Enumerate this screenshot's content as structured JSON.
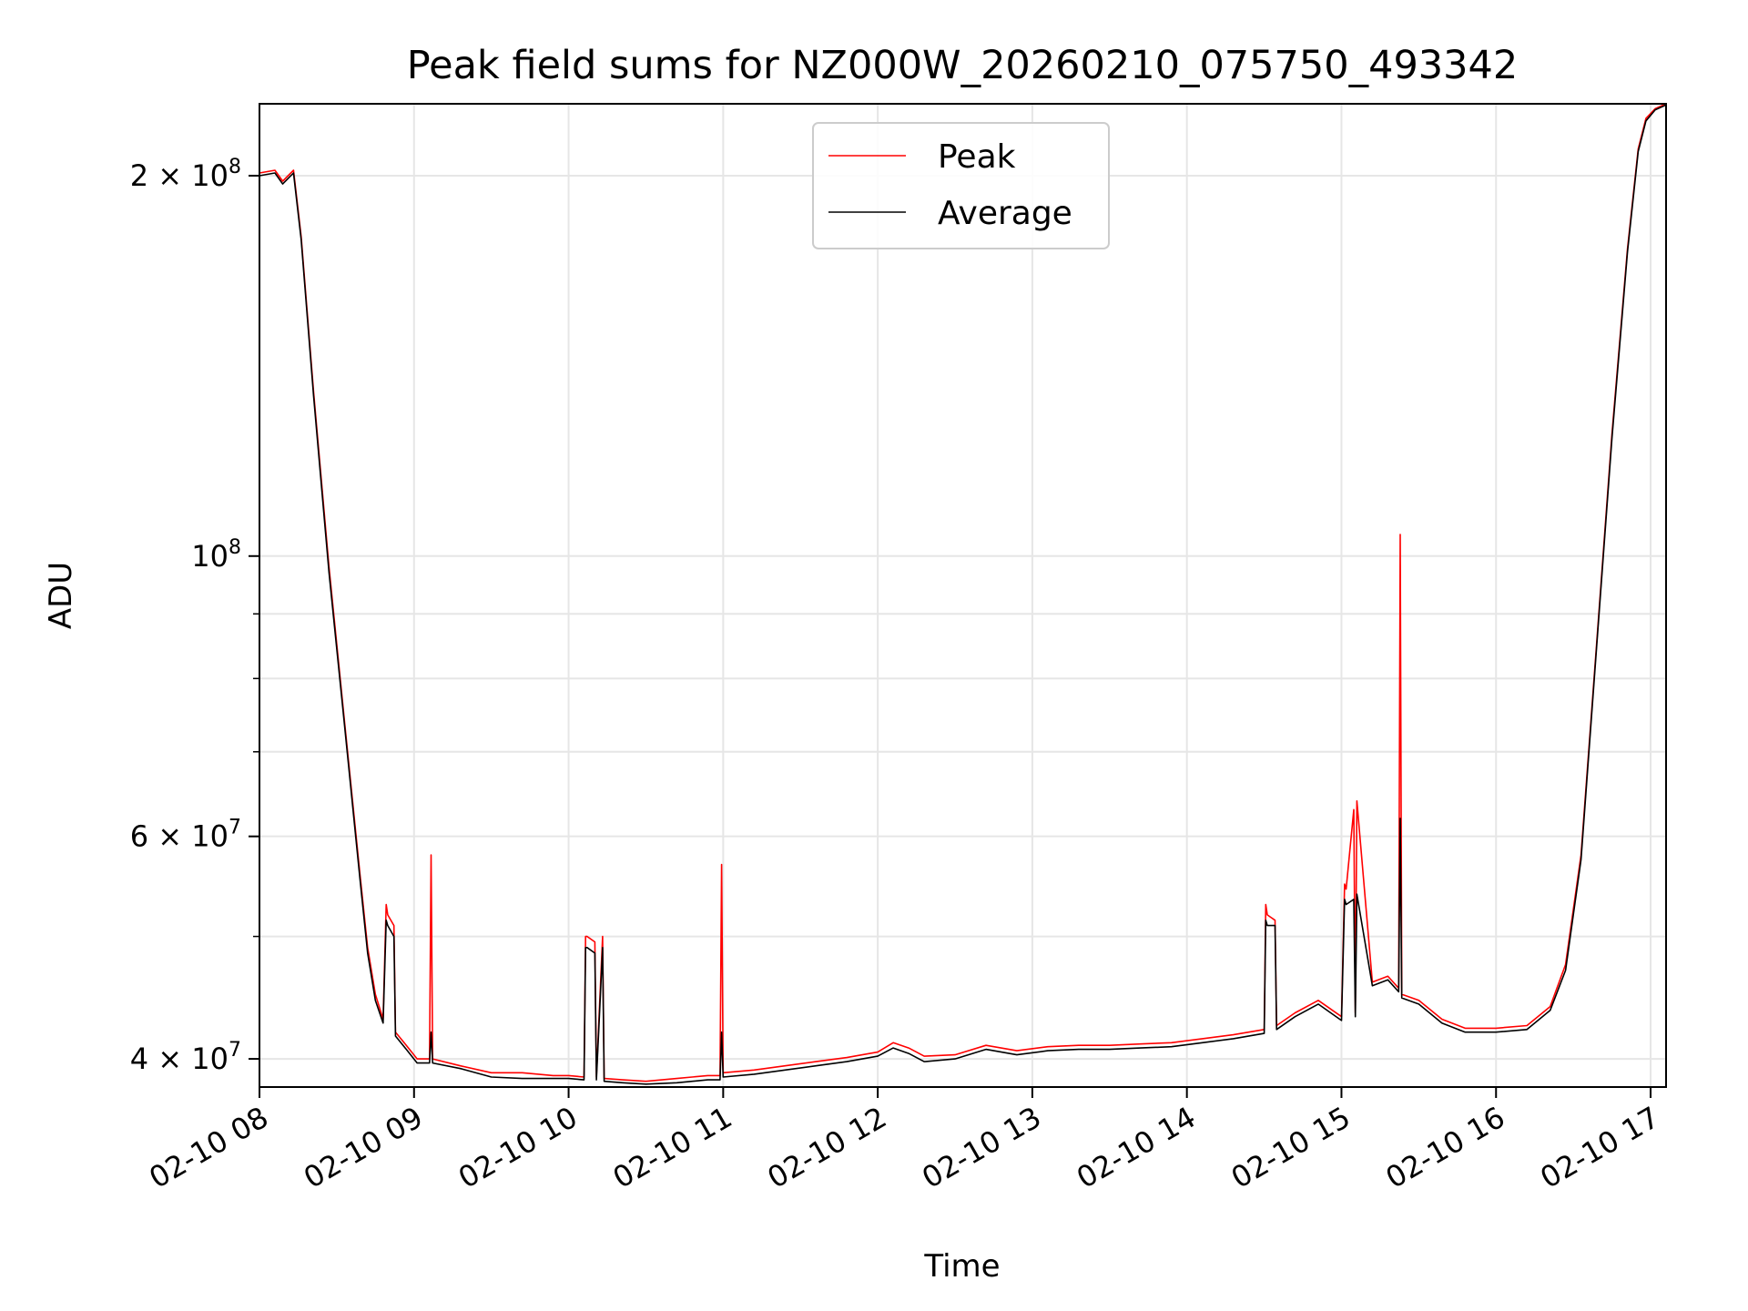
{
  "chart_data": {
    "type": "line",
    "title": "Peak field sums for NZ000W_20260210_075750_493342",
    "xlabel": "Time",
    "ylabel": "ADU",
    "yscale": "log",
    "xlim": [
      8.0,
      17.1
    ],
    "ylim": [
      38000000,
      228000000
    ],
    "grid": true,
    "legend_position": "upper-center",
    "x_ticks": [
      {
        "value": 8,
        "label": "02-10 08"
      },
      {
        "value": 9,
        "label": "02-10 09"
      },
      {
        "value": 10,
        "label": "02-10 10"
      },
      {
        "value": 11,
        "label": "02-10 11"
      },
      {
        "value": 12,
        "label": "02-10 12"
      },
      {
        "value": 13,
        "label": "02-10 13"
      },
      {
        "value": 14,
        "label": "02-10 14"
      },
      {
        "value": 15,
        "label": "02-10 15"
      },
      {
        "value": 16,
        "label": "02-10 16"
      },
      {
        "value": 17,
        "label": "02-10 17"
      }
    ],
    "y_ticks": [
      {
        "value": 40000000,
        "base": "4 × 10",
        "exp": "7"
      },
      {
        "value": 60000000,
        "base": "6 × 10",
        "exp": "7"
      },
      {
        "value": 100000000,
        "base": "10",
        "exp": "8"
      },
      {
        "value": 200000000,
        "base": "2 × 10",
        "exp": "8"
      }
    ],
    "y_minor_grid": [
      50000000,
      70000000,
      80000000,
      90000000
    ],
    "series": [
      {
        "name": "Peak",
        "color": "#ff0000",
        "x": [
          8.0,
          8.1,
          8.15,
          8.22,
          8.27,
          8.35,
          8.45,
          8.55,
          8.65,
          8.7,
          8.75,
          8.8,
          8.82,
          8.83,
          8.87,
          8.88,
          8.95,
          9.02,
          9.1,
          9.11,
          9.12,
          9.3,
          9.5,
          9.7,
          9.9,
          10.0,
          10.1,
          10.11,
          10.12,
          10.17,
          10.18,
          10.22,
          10.23,
          10.35,
          10.5,
          10.7,
          10.9,
          10.98,
          10.99,
          11.0,
          11.2,
          11.4,
          11.6,
          11.8,
          12.0,
          12.1,
          12.2,
          12.3,
          12.5,
          12.7,
          12.9,
          13.1,
          13.3,
          13.5,
          13.7,
          13.9,
          14.1,
          14.3,
          14.5,
          14.51,
          14.52,
          14.57,
          14.58,
          14.7,
          14.85,
          15.0,
          15.02,
          15.03,
          15.08,
          15.09,
          15.1,
          15.2,
          15.3,
          15.37,
          15.38,
          15.39,
          15.5,
          15.65,
          15.8,
          16.0,
          16.2,
          16.35,
          16.45,
          16.55,
          16.65,
          16.75,
          16.85,
          16.92,
          16.97,
          17.03,
          17.1
        ],
        "y": [
          201000000,
          202000000,
          198000000,
          202000000,
          179000000,
          135000000,
          98000000,
          74000000,
          56000000,
          49000000,
          45000000,
          43000000,
          53000000,
          52000000,
          51000000,
          42000000,
          41000000,
          40000000,
          40000000,
          58000000,
          40000000,
          39500000,
          39000000,
          39000000,
          38800000,
          38800000,
          38700000,
          50000000,
          50000000,
          49500000,
          38700000,
          50000000,
          38600000,
          38500000,
          38400000,
          38600000,
          38800000,
          38800000,
          57000000,
          39000000,
          39200000,
          39500000,
          39800000,
          40100000,
          40500000,
          41200000,
          40800000,
          40200000,
          40300000,
          41000000,
          40600000,
          40900000,
          41000000,
          41000000,
          41100000,
          41200000,
          41500000,
          41800000,
          42200000,
          53000000,
          52000000,
          51500000,
          42500000,
          43500000,
          44500000,
          43200000,
          55000000,
          54500000,
          63000000,
          43500000,
          64000000,
          46000000,
          46500000,
          45500000,
          104000000,
          45000000,
          44500000,
          43000000,
          42300000,
          42300000,
          42500000,
          44000000,
          47500000,
          58000000,
          85000000,
          125000000,
          175000000,
          210000000,
          222000000,
          226000000,
          228000000
        ]
      },
      {
        "name": "Average",
        "color": "#000000",
        "x": [
          8.0,
          8.1,
          8.15,
          8.22,
          8.27,
          8.35,
          8.45,
          8.55,
          8.65,
          8.7,
          8.75,
          8.8,
          8.82,
          8.83,
          8.87,
          8.88,
          8.95,
          9.02,
          9.1,
          9.11,
          9.12,
          9.3,
          9.5,
          9.7,
          9.9,
          10.0,
          10.1,
          10.11,
          10.12,
          10.17,
          10.18,
          10.22,
          10.23,
          10.35,
          10.5,
          10.7,
          10.9,
          10.98,
          10.99,
          11.0,
          11.2,
          11.4,
          11.6,
          11.8,
          12.0,
          12.1,
          12.2,
          12.3,
          12.5,
          12.7,
          12.9,
          13.1,
          13.3,
          13.5,
          13.7,
          13.9,
          14.1,
          14.3,
          14.5,
          14.51,
          14.52,
          14.57,
          14.58,
          14.7,
          14.85,
          15.0,
          15.02,
          15.03,
          15.08,
          15.09,
          15.1,
          15.2,
          15.3,
          15.37,
          15.38,
          15.39,
          15.5,
          15.65,
          15.8,
          16.0,
          16.2,
          16.35,
          16.45,
          16.55,
          16.65,
          16.75,
          16.85,
          16.92,
          16.97,
          17.03,
          17.1
        ],
        "y": [
          200000000,
          201000000,
          197000000,
          201000000,
          178000000,
          134000000,
          97000000,
          73500000,
          55500000,
          48500000,
          44500000,
          42700000,
          51500000,
          51000000,
          50000000,
          41700000,
          40700000,
          39700000,
          39700000,
          42000000,
          39700000,
          39300000,
          38700000,
          38600000,
          38600000,
          38600000,
          38500000,
          49000000,
          49000000,
          48500000,
          38500000,
          49000000,
          38400000,
          38300000,
          38200000,
          38300000,
          38500000,
          38500000,
          42000000,
          38700000,
          38900000,
          39200000,
          39500000,
          39800000,
          40200000,
          40800000,
          40400000,
          39800000,
          40000000,
          40700000,
          40300000,
          40600000,
          40700000,
          40700000,
          40800000,
          40900000,
          41200000,
          41500000,
          41900000,
          51500000,
          51000000,
          51000000,
          42200000,
          43200000,
          44200000,
          42900000,
          53500000,
          53000000,
          53500000,
          43200000,
          54000000,
          45700000,
          46200000,
          45200000,
          62000000,
          44700000,
          44200000,
          42700000,
          42000000,
          42000000,
          42200000,
          43700000,
          47000000,
          57500000,
          84500000,
          124000000,
          174000000,
          209000000,
          221000000,
          225500000,
          227500000
        ]
      }
    ]
  }
}
